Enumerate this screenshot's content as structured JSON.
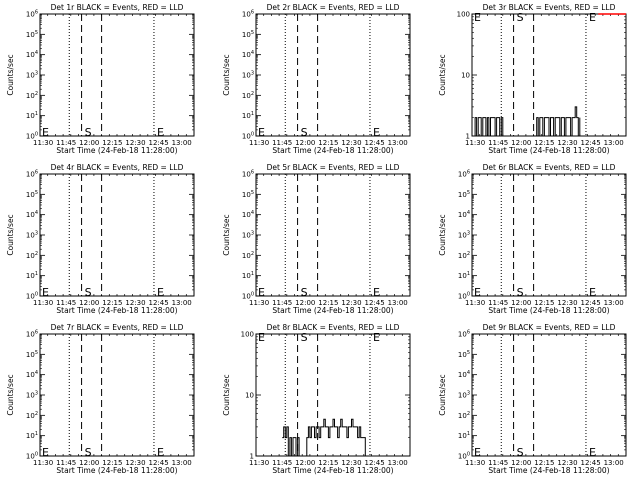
{
  "figure": {
    "background": "#ffffff",
    "axis_color": "#000000",
    "events_color": "#000000",
    "lld_color": "#ff0000"
  },
  "chart_data": [
    {
      "type": "line",
      "title": "Det 1r BLACK = Events, RED = LLD",
      "xlabel": "Start Time (24-Feb-18 11:28:00)",
      "ylabel": "Counts/sec",
      "xlim": [
        "11:28",
        "13:08"
      ],
      "x_ticks": [
        "11:30",
        "11:45",
        "12:00",
        "12:15",
        "12:30",
        "12:45",
        "13:00"
      ],
      "yscale": "log",
      "ylim": [
        1,
        1000000
      ],
      "y_ticks": [
        "10^0",
        "10^1",
        "10^2",
        "10^3",
        "10^4",
        "10^5",
        "10^6"
      ],
      "vlines": {
        "dotted": [
          "11:47",
          "12:42"
        ],
        "dashed": [
          "11:55",
          "12:08"
        ]
      },
      "markers": [
        {
          "text": "E",
          "x": "11:28"
        },
        {
          "text": "S",
          "x": "11:55"
        },
        {
          "text": "E",
          "x": "12:42"
        }
      ],
      "marker_level": 1.6,
      "series": []
    },
    {
      "type": "line",
      "title": "Det 2r BLACK = Events, RED = LLD",
      "xlabel": "Start Time (24-Feb-18 11:28:00)",
      "ylabel": "Counts/sec",
      "xlim": [
        "11:28",
        "13:08"
      ],
      "x_ticks": [
        "11:30",
        "11:45",
        "12:00",
        "12:15",
        "12:30",
        "12:45",
        "13:00"
      ],
      "yscale": "log",
      "ylim": [
        1,
        1000000
      ],
      "y_ticks": [
        "10^0",
        "10^1",
        "10^2",
        "10^3",
        "10^4",
        "10^5",
        "10^6"
      ],
      "vlines": {
        "dotted": [
          "11:47",
          "12:42"
        ],
        "dashed": [
          "11:55",
          "12:08"
        ]
      },
      "markers": [
        {
          "text": "E",
          "x": "11:28"
        },
        {
          "text": "S",
          "x": "11:55"
        },
        {
          "text": "E",
          "x": "12:42"
        }
      ],
      "marker_level": 1.6,
      "series": []
    },
    {
      "type": "line",
      "title": "Det 3r BLACK = Events, RED = LLD",
      "xlabel": "Start Time (24-Feb-18 11:28:00)",
      "ylabel": "Counts/sec",
      "xlim": [
        "11:28",
        "13:08"
      ],
      "x_ticks": [
        "11:30",
        "11:45",
        "12:00",
        "12:15",
        "12:30",
        "12:45",
        "13:00"
      ],
      "yscale": "log",
      "ylim": [
        1,
        100
      ],
      "y_ticks": [
        "1",
        "10",
        "100"
      ],
      "vlines": {
        "dotted": [
          "11:47",
          "12:42"
        ],
        "dashed": [
          "11:55",
          "12:08"
        ]
      },
      "markers": [
        {
          "text": "E",
          "x": "11:28"
        },
        {
          "text": "S",
          "x": "11:55"
        },
        {
          "text": "E",
          "x": "12:42"
        }
      ],
      "marker_level": 90,
      "series": [
        {
          "color": "#000000",
          "x": [
            "11:28",
            "11:30",
            "11:31",
            "11:32",
            "11:33",
            "11:34",
            "11:35",
            "11:36",
            "11:37",
            "11:38",
            "11:39",
            "11:40",
            "11:41",
            "11:42",
            "11:43",
            "11:44",
            "11:45",
            "11:46",
            "11:47",
            "11:48",
            "12:10",
            "12:11",
            "12:12",
            "12:13",
            "12:14",
            "12:15",
            "12:16",
            "12:17",
            "12:18",
            "12:19",
            "12:20",
            "12:21",
            "12:22",
            "12:23",
            "12:24",
            "12:25",
            "12:26",
            "12:27",
            "12:28",
            "12:29",
            "12:30",
            "12:31",
            "12:32",
            "12:33",
            "12:34",
            "12:35",
            "12:36",
            "12:37",
            "12:38"
          ],
          "y": [
            1,
            2,
            1,
            2,
            2,
            1,
            2,
            2,
            1,
            2,
            1,
            2,
            2,
            2,
            1,
            2,
            2,
            1,
            2,
            1,
            2,
            1,
            2,
            2,
            1,
            2,
            2,
            2,
            1,
            2,
            2,
            1,
            2,
            2,
            2,
            1,
            2,
            2,
            1,
            2,
            2,
            2,
            1,
            2,
            2,
            3,
            2,
            1,
            2
          ]
        },
        {
          "color": "#ff0000",
          "x": [
            "12:50",
            "13:08"
          ],
          "y": [
            100,
            100
          ]
        }
      ]
    },
    {
      "type": "line",
      "title": "Det 4r BLACK = Events, RED = LLD",
      "xlabel": "Start Time (24-Feb-18 11:28:00)",
      "ylabel": "Counts/sec",
      "xlim": [
        "11:28",
        "13:08"
      ],
      "x_ticks": [
        "11:30",
        "11:45",
        "12:00",
        "12:15",
        "12:30",
        "12:45",
        "13:00"
      ],
      "yscale": "log",
      "ylim": [
        1,
        1000000
      ],
      "y_ticks": [
        "10^0",
        "10^1",
        "10^2",
        "10^3",
        "10^4",
        "10^5",
        "10^6"
      ],
      "vlines": {
        "dotted": [
          "11:47",
          "12:42"
        ],
        "dashed": [
          "11:55",
          "12:08"
        ]
      },
      "markers": [
        {
          "text": "E",
          "x": "11:28"
        },
        {
          "text": "S",
          "x": "11:55"
        },
        {
          "text": "E",
          "x": "12:42"
        }
      ],
      "marker_level": 1.6,
      "series": []
    },
    {
      "type": "line",
      "title": "Det 5r BLACK = Events, RED = LLD",
      "xlabel": "Start Time (24-Feb-18 11:28:00)",
      "ylabel": "Counts/sec",
      "xlim": [
        "11:28",
        "13:08"
      ],
      "x_ticks": [
        "11:30",
        "11:45",
        "12:00",
        "12:15",
        "12:30",
        "12:45",
        "13:00"
      ],
      "yscale": "log",
      "ylim": [
        1,
        1000000
      ],
      "y_ticks": [
        "10^0",
        "10^1",
        "10^2",
        "10^3",
        "10^4",
        "10^5",
        "10^6"
      ],
      "vlines": {
        "dotted": [
          "11:47",
          "12:42"
        ],
        "dashed": [
          "11:55",
          "12:08"
        ]
      },
      "markers": [
        {
          "text": "E",
          "x": "11:28"
        },
        {
          "text": "S",
          "x": "11:55"
        },
        {
          "text": "E",
          "x": "12:42"
        }
      ],
      "marker_level": 1.6,
      "series": []
    },
    {
      "type": "line",
      "title": "Det 6r BLACK = Events, RED = LLD",
      "xlabel": "Start Time (24-Feb-18 11:28:00)",
      "ylabel": "Counts/sec",
      "xlim": [
        "11:28",
        "13:08"
      ],
      "x_ticks": [
        "11:30",
        "11:45",
        "12:00",
        "12:15",
        "12:30",
        "12:45",
        "13:00"
      ],
      "yscale": "log",
      "ylim": [
        1,
        1000000
      ],
      "y_ticks": [
        "10^0",
        "10^1",
        "10^2",
        "10^3",
        "10^4",
        "10^5",
        "10^6"
      ],
      "vlines": {
        "dotted": [
          "11:47",
          "12:42"
        ],
        "dashed": [
          "11:55",
          "12:08"
        ]
      },
      "markers": [
        {
          "text": "E",
          "x": "11:28"
        },
        {
          "text": "S",
          "x": "11:55"
        },
        {
          "text": "E",
          "x": "12:42"
        }
      ],
      "marker_level": 1.6,
      "series": []
    },
    {
      "type": "line",
      "title": "Det 7r BLACK = Events, RED = LLD",
      "xlabel": "Start Time (24-Feb-18 11:28:00)",
      "ylabel": "Counts/sec",
      "xlim": [
        "11:28",
        "13:08"
      ],
      "x_ticks": [
        "11:30",
        "11:45",
        "12:00",
        "12:15",
        "12:30",
        "12:45",
        "13:00"
      ],
      "yscale": "log",
      "ylim": [
        1,
        1000000
      ],
      "y_ticks": [
        "10^0",
        "10^1",
        "10^2",
        "10^3",
        "10^4",
        "10^5",
        "10^6"
      ],
      "vlines": {
        "dotted": [
          "11:47",
          "12:42"
        ],
        "dashed": [
          "11:55",
          "12:08"
        ]
      },
      "markers": [
        {
          "text": "E",
          "x": "11:28"
        },
        {
          "text": "S",
          "x": "11:55"
        },
        {
          "text": "E",
          "x": "12:42"
        }
      ],
      "marker_level": 1.6,
      "series": []
    },
    {
      "type": "line",
      "title": "Det 8r BLACK = Events, RED = LLD",
      "xlabel": "Start Time (24-Feb-18 11:28:00)",
      "ylabel": "Counts/sec",
      "xlim": [
        "11:28",
        "13:08"
      ],
      "x_ticks": [
        "11:30",
        "11:45",
        "12:00",
        "12:15",
        "12:30",
        "12:45",
        "13:00"
      ],
      "yscale": "log",
      "ylim": [
        1,
        100
      ],
      "y_ticks": [
        "1",
        "10",
        "100"
      ],
      "vlines": {
        "dotted": [
          "11:47",
          "12:42"
        ],
        "dashed": [
          "11:55",
          "12:08"
        ]
      },
      "markers": [
        {
          "text": "E",
          "x": "11:28"
        },
        {
          "text": "S",
          "x": "11:55"
        },
        {
          "text": "E",
          "x": "12:42"
        }
      ],
      "marker_level": 90,
      "series": [
        {
          "color": "#000000",
          "x": [
            "11:45",
            "11:46",
            "11:47",
            "11:48",
            "11:49",
            "11:50",
            "11:51",
            "11:52",
            "11:53",
            "11:54",
            "11:55",
            "11:56",
            "11:57",
            "12:00",
            "12:01",
            "12:02",
            "12:03",
            "12:04",
            "12:05",
            "12:06",
            "12:07",
            "12:08",
            "12:09",
            "12:10",
            "12:11",
            "12:12",
            "12:13",
            "12:14",
            "12:15",
            "12:16",
            "12:17",
            "12:18",
            "12:19",
            "12:20",
            "12:21",
            "12:22",
            "12:23",
            "12:24",
            "12:25",
            "12:26",
            "12:27",
            "12:28",
            "12:29",
            "12:30",
            "12:31",
            "12:32",
            "12:33",
            "12:34",
            "12:35",
            "12:36",
            "12:37",
            "12:38",
            "12:39",
            "12:40"
          ],
          "y": [
            2,
            3,
            2,
            3,
            1,
            2,
            1,
            2,
            2,
            1,
            2,
            1,
            1,
            1,
            2,
            3,
            2,
            3,
            3,
            2,
            3,
            3,
            2,
            3,
            3,
            4,
            3,
            3,
            2,
            3,
            3,
            4,
            3,
            3,
            2,
            3,
            4,
            3,
            3,
            3,
            2,
            3,
            3,
            4,
            3,
            3,
            3,
            2,
            3,
            2,
            2,
            2,
            1,
            1
          ]
        }
      ]
    },
    {
      "type": "line",
      "title": "Det 9r BLACK = Events, RED = LLD",
      "xlabel": "Start Time (24-Feb-18 11:28:00)",
      "ylabel": "Counts/sec",
      "xlim": [
        "11:28",
        "13:08"
      ],
      "x_ticks": [
        "11:30",
        "11:45",
        "12:00",
        "12:15",
        "12:30",
        "12:45",
        "13:00"
      ],
      "yscale": "log",
      "ylim": [
        1,
        1000000
      ],
      "y_ticks": [
        "10^0",
        "10^1",
        "10^2",
        "10^3",
        "10^4",
        "10^5",
        "10^6"
      ],
      "vlines": {
        "dotted": [
          "11:47",
          "12:42"
        ],
        "dashed": [
          "11:55",
          "12:08"
        ]
      },
      "markers": [
        {
          "text": "E",
          "x": "11:28"
        },
        {
          "text": "S",
          "x": "11:55"
        },
        {
          "text": "E",
          "x": "12:42"
        }
      ],
      "marker_level": 1.6,
      "series": []
    }
  ]
}
